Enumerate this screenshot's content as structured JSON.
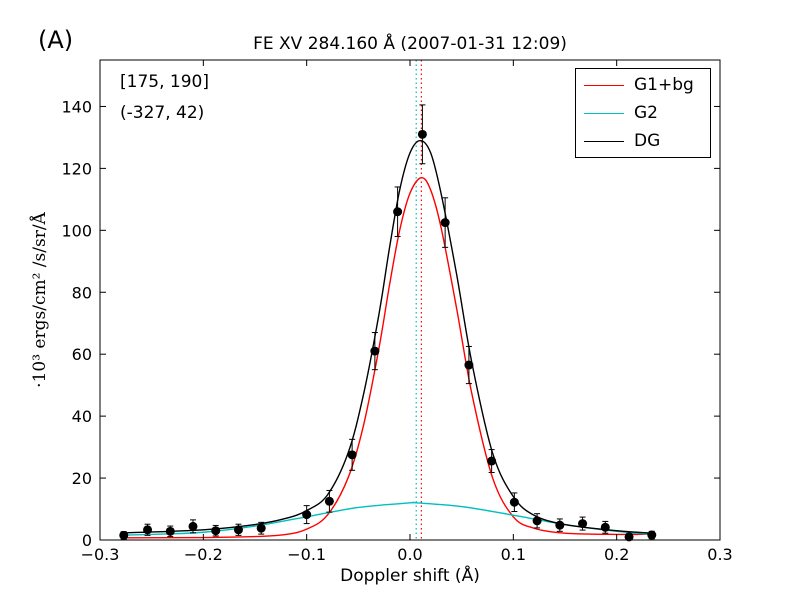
{
  "panel_label": "(A)",
  "colors": {
    "g1bg": "#ff0000",
    "g2": "#00bfbf",
    "dg": "#000000",
    "points": "#000000"
  },
  "chart_data": {
    "type": "line",
    "title": "FE XV 284.160 Å  (2007-01-31 12:09)",
    "xlabel": "Doppler shift (Å)",
    "ylabel": "·10³  ergs/cm² /s/sr/Å",
    "xlim": [
      -0.3,
      0.3
    ],
    "ylim": [
      0,
      155
    ],
    "xticks": [
      -0.3,
      -0.2,
      -0.1,
      0.0,
      0.1,
      0.2,
      0.3
    ],
    "xtick_labels": [
      "−0.3",
      "−0.2",
      "−0.1",
      "0.0",
      "0.1",
      "0.2",
      "0.3"
    ],
    "yticks": [
      0,
      20,
      40,
      60,
      80,
      100,
      120,
      140
    ],
    "ytick_labels": [
      "0",
      "20",
      "40",
      "60",
      "80",
      "100",
      "120",
      "140"
    ],
    "annotations": [
      "[175, 190]",
      "(-327, 42)"
    ],
    "legend_position": "top-right",
    "vlines": [
      {
        "x": 0.011,
        "color": "#ff0000",
        "style": "dotted"
      },
      {
        "x": 0.006,
        "color": "#00bfbf",
        "style": "dotted"
      }
    ],
    "series": [
      {
        "name": "G1+bg",
        "kind": "line",
        "color": "#ff0000",
        "x": [
          -0.275,
          -0.2,
          -0.15,
          -0.12,
          -0.1,
          -0.08,
          -0.06,
          -0.045,
          -0.03,
          -0.02,
          -0.01,
          0.0,
          0.011,
          0.02,
          0.03,
          0.045,
          0.06,
          0.08,
          0.1,
          0.12,
          0.15,
          0.2,
          0.235
        ],
        "y": [
          0.7,
          0.8,
          1.1,
          1.8,
          3.5,
          8.0,
          20.0,
          37.0,
          62.0,
          82.0,
          100.0,
          112.0,
          117.0,
          113.0,
          101.0,
          75.0,
          47.0,
          20.0,
          7.5,
          3.8,
          2.2,
          1.8,
          1.9
        ]
      },
      {
        "name": "G2",
        "kind": "line",
        "color": "#00bfbf",
        "x": [
          -0.275,
          -0.25,
          -0.2,
          -0.15,
          -0.1,
          -0.05,
          0.0,
          0.006,
          0.05,
          0.1,
          0.15,
          0.2,
          0.235
        ],
        "y": [
          1.6,
          1.8,
          2.5,
          4.5,
          7.5,
          10.5,
          12.0,
          12.0,
          10.8,
          8.0,
          5.0,
          2.8,
          1.8
        ]
      },
      {
        "name": "DG",
        "kind": "line",
        "color": "#000000",
        "x": [
          -0.275,
          -0.2,
          -0.15,
          -0.12,
          -0.1,
          -0.08,
          -0.06,
          -0.045,
          -0.03,
          -0.02,
          -0.01,
          0.0,
          0.01,
          0.02,
          0.03,
          0.045,
          0.06,
          0.08,
          0.1,
          0.12,
          0.15,
          0.2,
          0.235
        ],
        "y": [
          2.3,
          3.3,
          5.0,
          7.0,
          9.5,
          14.5,
          28.0,
          47.0,
          73.0,
          94.0,
          113.0,
          125.0,
          129.0,
          125.0,
          112.0,
          86.0,
          57.0,
          28.0,
          14.0,
          8.0,
          5.0,
          3.0,
          2.2
        ]
      },
      {
        "kind": "points",
        "color": "#000000",
        "x": [
          -0.277,
          -0.254,
          -0.232,
          -0.21,
          -0.188,
          -0.166,
          -0.144,
          -0.1,
          -0.078,
          -0.056,
          -0.034,
          -0.012,
          0.012,
          0.034,
          0.057,
          0.079,
          0.101,
          0.123,
          0.145,
          0.167,
          0.189,
          0.212,
          0.234
        ],
        "y": [
          1.5,
          3.3,
          2.8,
          4.4,
          3.0,
          3.3,
          3.8,
          8.2,
          12.5,
          27.5,
          61.0,
          106.0,
          131.0,
          102.5,
          56.5,
          25.5,
          12.2,
          6.2,
          4.8,
          5.3,
          4.1,
          1.0,
          1.6
        ],
        "yerr": [
          1.2,
          1.8,
          1.7,
          2.1,
          1.7,
          1.8,
          1.9,
          2.9,
          3.5,
          5.0,
          6.0,
          8.0,
          9.5,
          8.0,
          6.0,
          3.7,
          3.0,
          2.3,
          2.0,
          2.1,
          1.9,
          1.0,
          1.2
        ]
      }
    ]
  }
}
